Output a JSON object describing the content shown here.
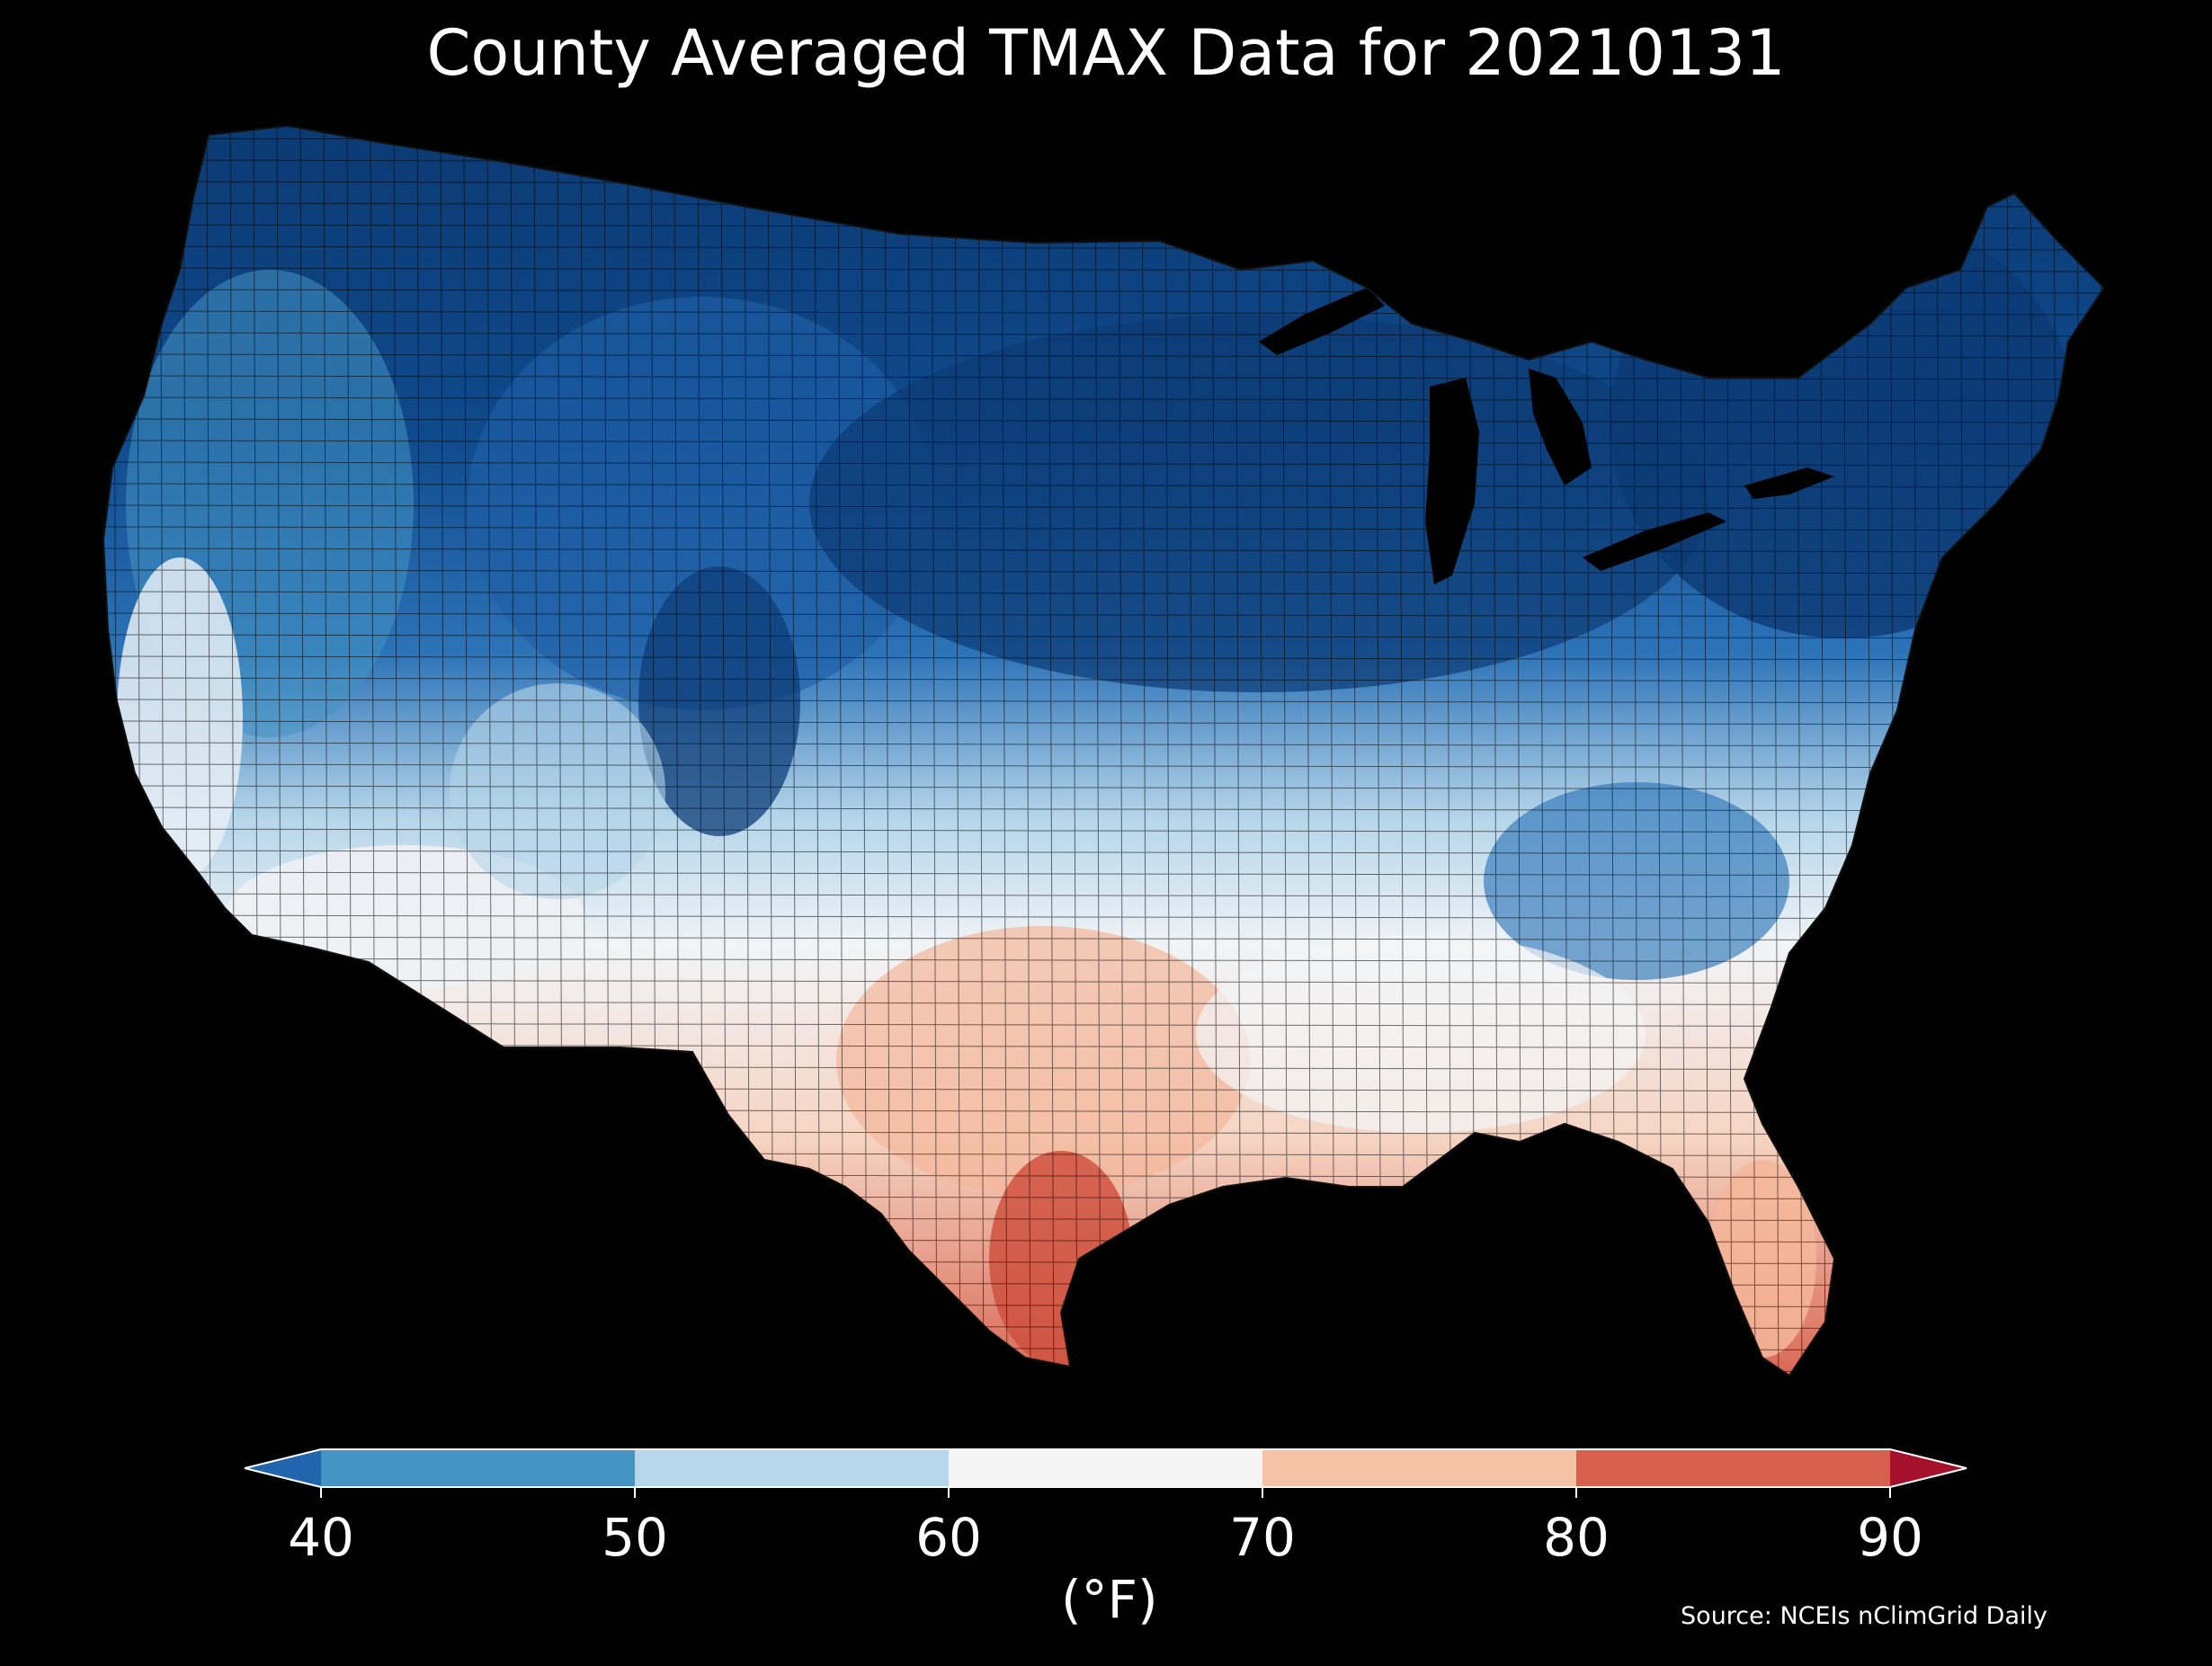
{
  "title": "County Averaged TMAX Data for 20210131",
  "colorbar": {
    "ticks": [
      "40",
      "50",
      "60",
      "70",
      "80",
      "90"
    ],
    "unit_label": "(°F)",
    "bins": [
      {
        "range": "<40",
        "color": "#2166ac"
      },
      {
        "range": "40-50",
        "color": "#4393c3"
      },
      {
        "range": "50-60",
        "color": "#b6d6ea"
      },
      {
        "range": "60-70",
        "color": "#f5f5f5"
      },
      {
        "range": "70-80",
        "color": "#f6c2a6"
      },
      {
        "range": "80-90",
        "color": "#d6604d"
      },
      {
        "range": ">90",
        "color": "#a5102a"
      }
    ],
    "extend": "both"
  },
  "source": "Source: NCEIs nClimGrid Daily",
  "map": {
    "region": "Contiguous United States",
    "variable": "TMAX",
    "date": "20210131",
    "background": "#000000"
  }
}
